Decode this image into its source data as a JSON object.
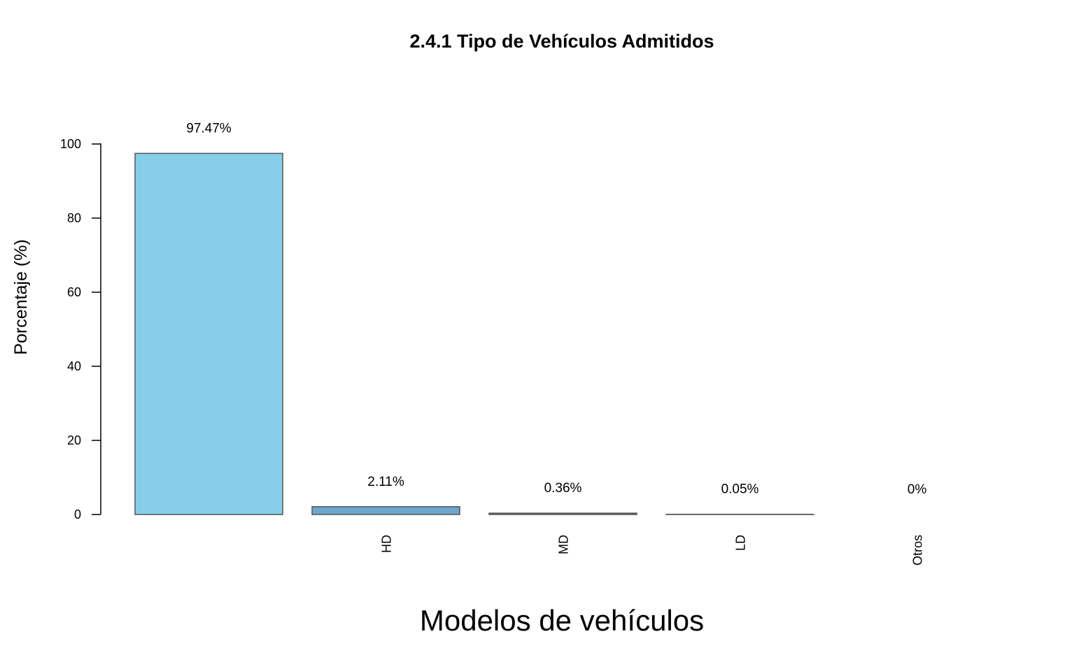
{
  "chart_data": {
    "type": "bar",
    "title": "2.4.1 Tipo de Vehículos Admitidos",
    "xlabel": "Modelos de vehículos",
    "ylabel": "Porcentaje (%)",
    "categories": [
      "",
      "HD",
      "MD",
      "LD",
      "Otros"
    ],
    "values": [
      97.47,
      2.11,
      0.36,
      0.05,
      0
    ],
    "data_labels": [
      "97.47%",
      "2.11%",
      "0.36%",
      "0.05%",
      "0%"
    ],
    "colors": [
      "#87CEEB",
      "#6CA6CD",
      "#4A708B",
      "#36648B",
      "#27408B"
    ],
    "ylim": [
      0,
      100
    ],
    "yticks": [
      0,
      20,
      40,
      60,
      80,
      100
    ],
    "grid": false,
    "legend": "none"
  }
}
